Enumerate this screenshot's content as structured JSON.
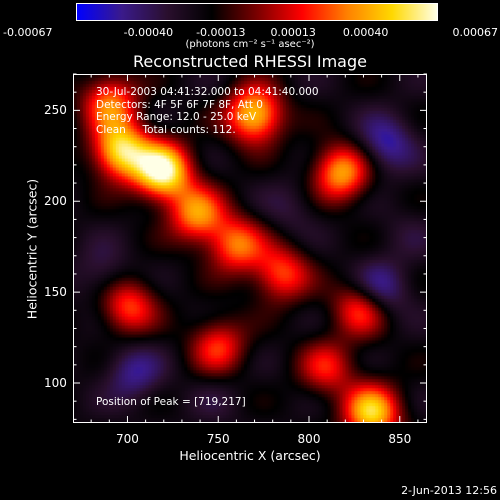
{
  "colorbar": {
    "ticks": [
      "-0.00067",
      "-0.00040",
      "-0.00013",
      "0.00013",
      "0.00040",
      "0.00067"
    ],
    "unit_label": "(photons cm⁻² s⁻¹ asec⁻²)",
    "colors": [
      "#0000ff",
      "#3a1a8a",
      "#2a0f2e",
      "#000000",
      "#7a0000",
      "#ff0000",
      "#ff8000",
      "#ffd800",
      "#ffffe6"
    ]
  },
  "chart_data": {
    "type": "heatmap",
    "title": "Reconstructed RHESSI Image",
    "xlabel": "Heliocentric X (arcsec)",
    "ylabel": "Heliocentric Y (arcsec)",
    "xlim": [
      670,
      865
    ],
    "ylim": [
      78,
      270
    ],
    "xticks": [
      "700",
      "750",
      "800",
      "850"
    ],
    "yticks": [
      "100",
      "150",
      "200",
      "250"
    ],
    "zlim": [
      -0.00067,
      0.00067
    ],
    "annotations": [
      "30-Jul-2003 04:41:32.000 to 04:41:40.000",
      "Detectors: 4F 5F 6F 7F 8F, Att 0",
      "Energy Range: 12.0 - 25.0 keV",
      "Clean     Total counts: 112."
    ],
    "peak_label": "Position of Peak = [719,217]",
    "bright_sources": [
      {
        "x": 719,
        "y": 217,
        "value": 0.00067
      },
      {
        "x": 696,
        "y": 228,
        "value": 0.00055
      },
      {
        "x": 770,
        "y": 248,
        "value": 0.0005
      },
      {
        "x": 818,
        "y": 216,
        "value": 0.0004
      },
      {
        "x": 760,
        "y": 176,
        "value": 0.0003
      },
      {
        "x": 738,
        "y": 193,
        "value": 0.00035
      },
      {
        "x": 785,
        "y": 160,
        "value": 0.00025
      },
      {
        "x": 830,
        "y": 142,
        "value": 0.00035
      },
      {
        "x": 835,
        "y": 83,
        "value": 0.0005
      },
      {
        "x": 700,
        "y": 142,
        "value": 0.00025
      },
      {
        "x": 750,
        "y": 120,
        "value": 0.0002
      },
      {
        "x": 690,
        "y": 255,
        "value": 0.0003
      },
      {
        "x": 810,
        "y": 108,
        "value": 0.00015
      }
    ],
    "dark_sources": [
      {
        "x": 843,
        "y": 232,
        "value": -0.00055
      },
      {
        "x": 838,
        "y": 150,
        "value": -0.00067
      },
      {
        "x": 703,
        "y": 105,
        "value": -0.0005
      },
      {
        "x": 686,
        "y": 160,
        "value": -0.0004
      },
      {
        "x": 790,
        "y": 196,
        "value": -0.00035
      },
      {
        "x": 748,
        "y": 90,
        "value": -0.0003
      },
      {
        "x": 855,
        "y": 182,
        "value": -0.0003
      }
    ]
  },
  "date_stamp": "2-Jun-2013 12:56"
}
